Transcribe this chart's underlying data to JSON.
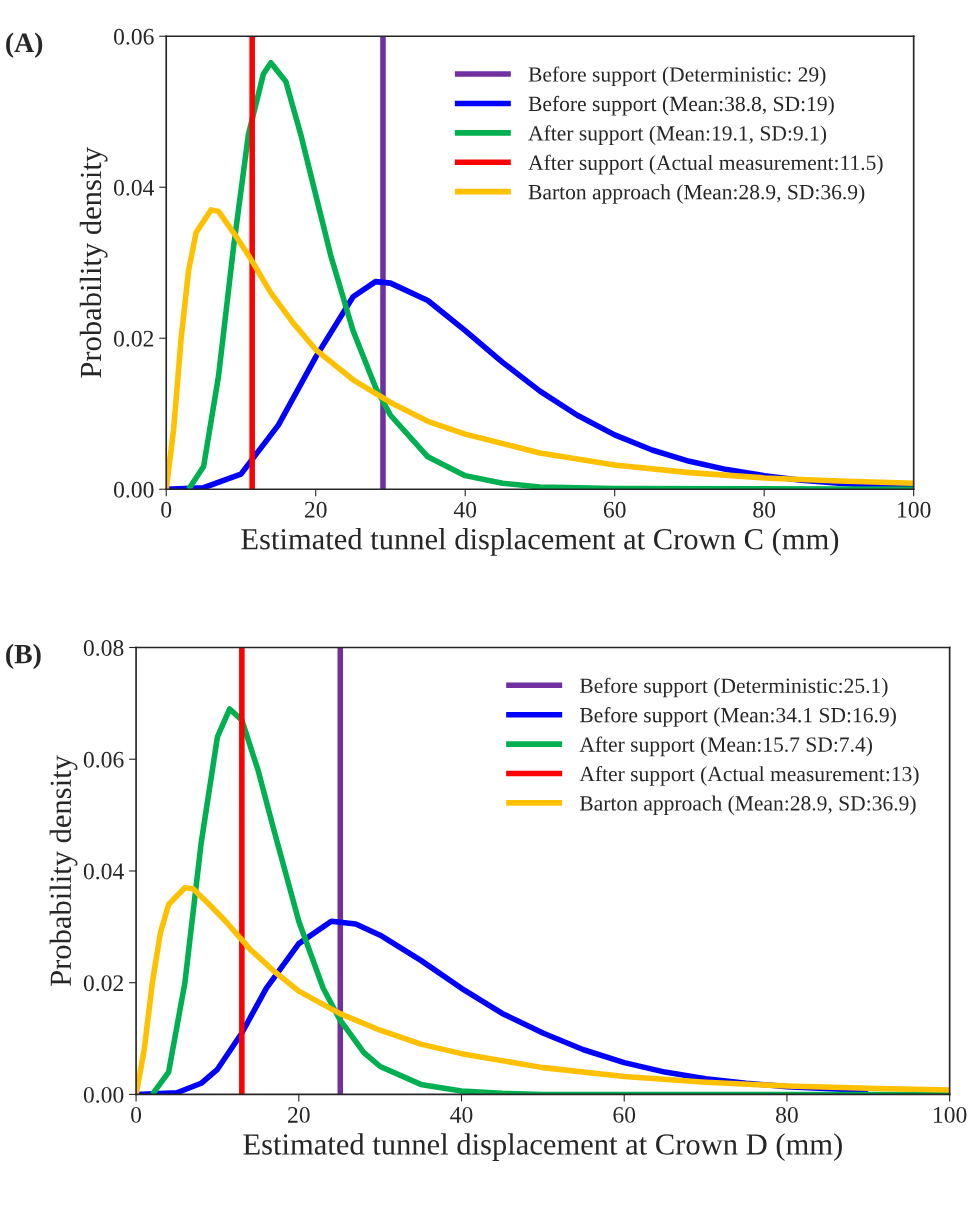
{
  "chart_data": [
    {
      "type": "line",
      "annotations": [
        "(A)"
      ],
      "xlabel": "Estimated tunnel displacement at Crown C (mm)",
      "ylabel": "Probability density",
      "xlim": [
        0,
        100
      ],
      "xticks": [
        0,
        20,
        40,
        60,
        80,
        100
      ],
      "ylim": [
        0,
        0.06
      ],
      "yticks": [
        {
          "value": 0,
          "label": "0.00"
        },
        {
          "value": 0.02,
          "label": "0.02"
        },
        {
          "value": 0.04,
          "label": "0.04"
        },
        {
          "value": 0.06,
          "label": "0.06"
        }
      ],
      "grid": false,
      "legend": "top right",
      "marker": "none",
      "line_style": "solid",
      "series": [
        {
          "name": "Before support (Deterministic: 29)",
          "color": "#7030a0",
          "x": [
            29,
            29
          ],
          "values": [
            0,
            0.06
          ]
        },
        {
          "name": "Before support (Mean:38.8, SD:19)",
          "color": "#0000ff",
          "x": [
            0,
            5,
            10,
            15,
            20,
            25,
            28,
            30,
            35,
            40,
            45,
            50,
            55,
            60,
            65,
            70,
            75,
            80,
            85,
            90,
            95,
            100
          ],
          "values": [
            0,
            0.0002,
            0.002,
            0.0085,
            0.0175,
            0.0255,
            0.0275,
            0.0273,
            0.025,
            0.021,
            0.0168,
            0.013,
            0.0098,
            0.0072,
            0.0052,
            0.0037,
            0.0026,
            0.0018,
            0.0012,
            0.0008,
            0.0005,
            0.0003
          ]
        },
        {
          "name": "After support (Mean:19.1, SD:9.1)",
          "color": "#00b050",
          "x": [
            3,
            5,
            7,
            9,
            11,
            13,
            14,
            16,
            18,
            20,
            22,
            25,
            28,
            30,
            35,
            40,
            45,
            50,
            60,
            100
          ],
          "values": [
            0,
            0.003,
            0.015,
            0.032,
            0.047,
            0.055,
            0.0565,
            0.054,
            0.047,
            0.039,
            0.031,
            0.021,
            0.0135,
            0.0098,
            0.0043,
            0.0018,
            0.0008,
            0.0003,
            0.0001,
            0
          ]
        },
        {
          "name": "After support (Actual measurement:11.5)",
          "color": "#ff0000",
          "x": [
            11.5,
            11.5
          ],
          "values": [
            0,
            0.06
          ]
        },
        {
          "name": "Barton approach (Mean:28.9, SD:36.9)",
          "color": "#ffc000",
          "x": [
            0,
            1,
            2,
            3,
            4,
            6,
            7,
            9,
            11,
            14,
            17,
            20,
            25,
            30,
            35,
            40,
            50,
            60,
            70,
            80,
            90,
            100
          ],
          "values": [
            0,
            0.008,
            0.02,
            0.029,
            0.034,
            0.037,
            0.0368,
            0.034,
            0.031,
            0.026,
            0.022,
            0.0185,
            0.0145,
            0.0115,
            0.009,
            0.0073,
            0.0048,
            0.0032,
            0.0022,
            0.0015,
            0.0011,
            0.0008
          ]
        }
      ]
    },
    {
      "type": "line",
      "annotations": [
        "(B)"
      ],
      "xlabel": "Estimated tunnel displacement at Crown D (mm)",
      "ylabel": "Probability density",
      "xlim": [
        0,
        100
      ],
      "xticks": [
        0,
        20,
        40,
        60,
        80,
        100
      ],
      "ylim": [
        0,
        0.08
      ],
      "yticks": [
        {
          "value": 0,
          "label": "0.00"
        },
        {
          "value": 0.02,
          "label": "0.02"
        },
        {
          "value": 0.04,
          "label": "0.04"
        },
        {
          "value": 0.06,
          "label": "0.06"
        },
        {
          "value": 0.08,
          "label": "0.08"
        }
      ],
      "grid": false,
      "legend": "top right",
      "marker": "none",
      "line_style": "solid",
      "series": [
        {
          "name": "Before support (Deterministic:25.1)",
          "color": "#7030a0",
          "x": [
            25.1,
            25.1
          ],
          "values": [
            0,
            0.08
          ]
        },
        {
          "name": "Before support (Mean:34.1 SD:16.9)",
          "color": "#0000ff",
          "x": [
            0,
            5,
            8,
            10,
            13,
            16,
            20,
            24,
            27,
            30,
            35,
            40,
            45,
            50,
            55,
            60,
            65,
            70,
            75,
            80,
            90
          ],
          "values": [
            0,
            0.0003,
            0.002,
            0.0045,
            0.011,
            0.019,
            0.027,
            0.031,
            0.0305,
            0.0285,
            0.024,
            0.019,
            0.0145,
            0.011,
            0.008,
            0.0057,
            0.004,
            0.0028,
            0.002,
            0.0014,
            0.0007
          ]
        },
        {
          "name": "After support (Mean:15.7 SD:7.4)",
          "color": "#00b050",
          "x": [
            2,
            4,
            6,
            8,
            10,
            11.5,
            13,
            15,
            17,
            20,
            23,
            25,
            28,
            30,
            35,
            40,
            45,
            50,
            100
          ],
          "values": [
            0,
            0.004,
            0.02,
            0.045,
            0.064,
            0.069,
            0.067,
            0.058,
            0.047,
            0.031,
            0.019,
            0.0135,
            0.0075,
            0.005,
            0.0018,
            0.0006,
            0.0002,
            0,
            0
          ]
        },
        {
          "name": "After support (Actual measurement:13)",
          "color": "#ff0000",
          "x": [
            13,
            13
          ],
          "values": [
            0,
            0.08
          ]
        },
        {
          "name": "Barton approach (Mean:28.9, SD:36.9)",
          "color": "#ffc000",
          "x": [
            0,
            1,
            2,
            3,
            4,
            6,
            7,
            9,
            11,
            14,
            17,
            20,
            25,
            30,
            35,
            40,
            50,
            60,
            70,
            80,
            90,
            100
          ],
          "values": [
            0,
            0.008,
            0.02,
            0.029,
            0.034,
            0.037,
            0.0368,
            0.034,
            0.031,
            0.026,
            0.022,
            0.0185,
            0.0145,
            0.0115,
            0.009,
            0.0073,
            0.0048,
            0.0032,
            0.0022,
            0.0015,
            0.0011,
            0.0008
          ]
        }
      ]
    }
  ]
}
